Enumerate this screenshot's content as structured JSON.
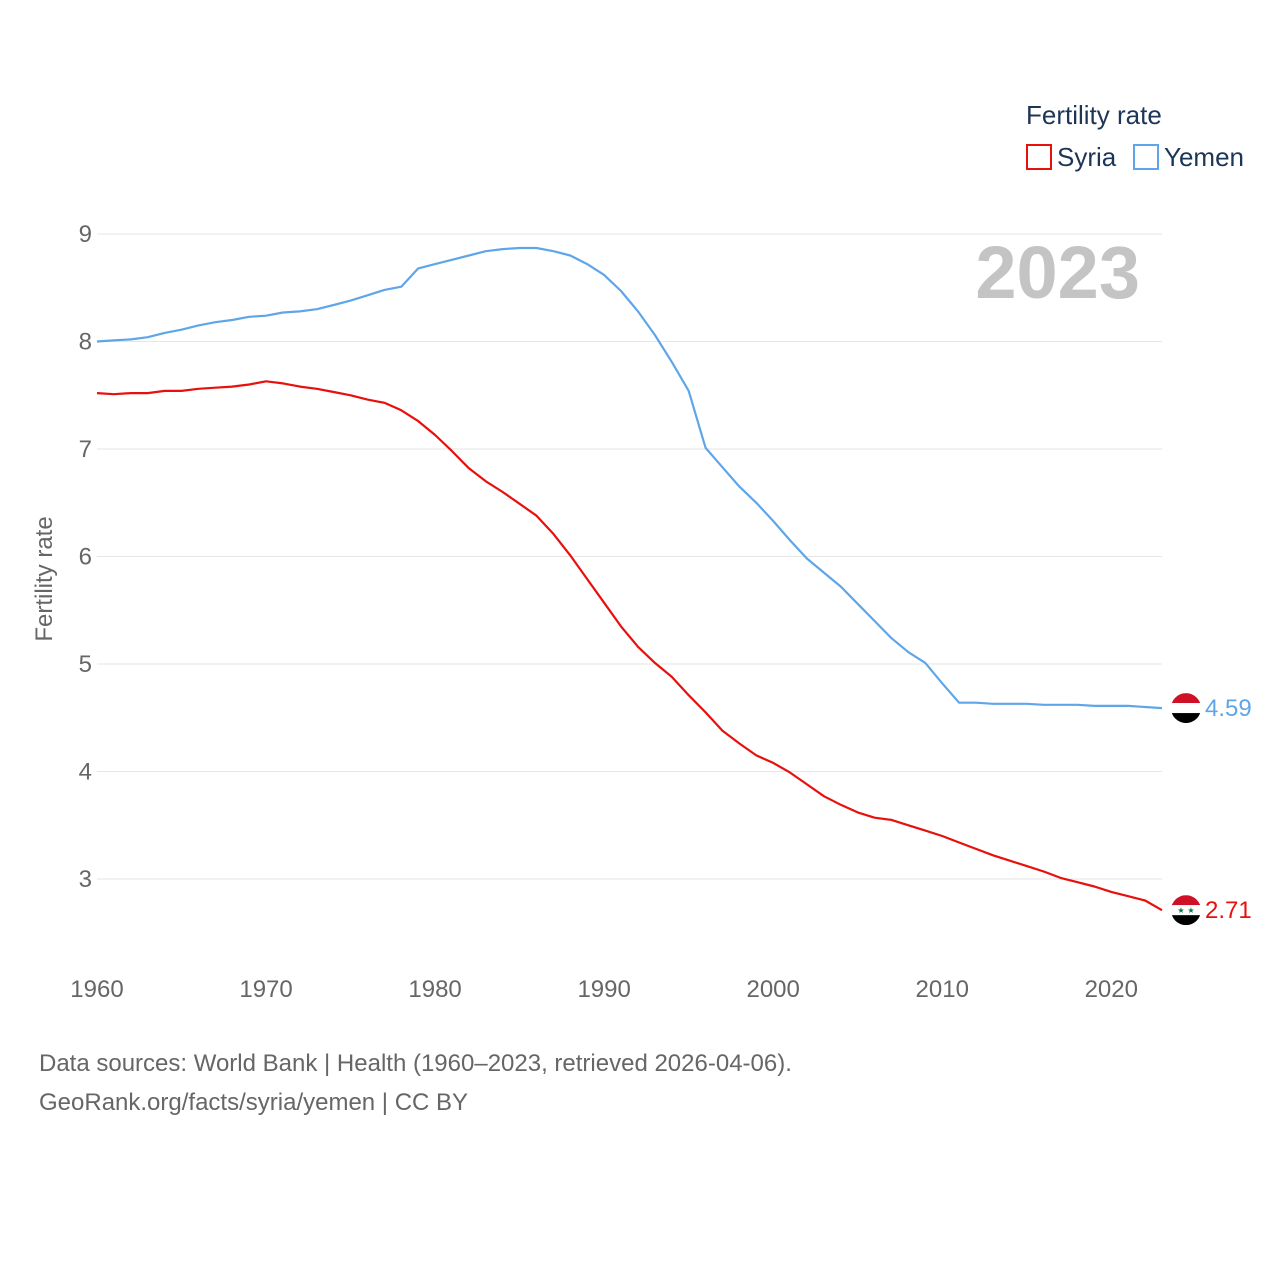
{
  "legend": {
    "title": "Fertility rate",
    "items": [
      {
        "name": "Syria",
        "color": "#e8100c"
      },
      {
        "name": "Yemen",
        "color": "#5fa6e8"
      }
    ]
  },
  "year_label": "2023",
  "y_axis_title": "Fertility rate",
  "sources": {
    "line1": "Data sources: World Bank | Health (1960–2023, retrieved 2026-04-06).",
    "line2": "GeoRank.org/facts/syria/yemen | CC BY"
  },
  "chart_data": {
    "type": "line",
    "title": "Fertility rate",
    "xlabel": "",
    "ylabel": "Fertility rate",
    "xlim": [
      1960,
      2023
    ],
    "ylim": [
      2.4,
      9.3
    ],
    "x_ticks": [
      "1960",
      "1970",
      "1980",
      "1990",
      "2000",
      "2010",
      "2020"
    ],
    "y_ticks": [
      "3",
      "4",
      "5",
      "6",
      "7",
      "8",
      "9"
    ],
    "x": [
      1960,
      1961,
      1962,
      1963,
      1964,
      1965,
      1966,
      1967,
      1968,
      1969,
      1970,
      1971,
      1972,
      1973,
      1974,
      1975,
      1976,
      1977,
      1978,
      1979,
      1980,
      1981,
      1982,
      1983,
      1984,
      1985,
      1986,
      1987,
      1988,
      1989,
      1990,
      1991,
      1992,
      1993,
      1994,
      1995,
      1996,
      1997,
      1998,
      1999,
      2000,
      2001,
      2002,
      2003,
      2004,
      2005,
      2006,
      2007,
      2008,
      2009,
      2010,
      2011,
      2012,
      2013,
      2014,
      2015,
      2016,
      2017,
      2018,
      2019,
      2020,
      2021,
      2022,
      2023
    ],
    "series": [
      {
        "name": "Syria",
        "color": "#e8100c",
        "end_label": "2.71",
        "values": [
          7.52,
          7.51,
          7.52,
          7.52,
          7.54,
          7.54,
          7.56,
          7.57,
          7.58,
          7.6,
          7.63,
          7.61,
          7.58,
          7.56,
          7.53,
          7.5,
          7.46,
          7.43,
          7.36,
          7.26,
          7.13,
          6.98,
          6.82,
          6.7,
          6.6,
          6.49,
          6.38,
          6.21,
          6.01,
          5.79,
          5.57,
          5.35,
          5.16,
          5.01,
          4.88,
          4.71,
          4.55,
          4.38,
          4.26,
          4.15,
          4.08,
          3.99,
          3.88,
          3.77,
          3.69,
          3.62,
          3.57,
          3.55,
          3.5,
          3.45,
          3.4,
          3.34,
          3.28,
          3.22,
          3.17,
          3.12,
          3.07,
          3.01,
          2.97,
          2.93,
          2.88,
          2.84,
          2.8,
          2.71
        ]
      },
      {
        "name": "Yemen",
        "color": "#5fa6e8",
        "end_label": "4.59",
        "values": [
          8.0,
          8.01,
          8.02,
          8.04,
          8.08,
          8.11,
          8.15,
          8.18,
          8.2,
          8.23,
          8.24,
          8.27,
          8.28,
          8.3,
          8.34,
          8.38,
          8.43,
          8.48,
          8.51,
          8.68,
          8.72,
          8.76,
          8.8,
          8.84,
          8.86,
          8.87,
          8.87,
          8.84,
          8.8,
          8.72,
          8.62,
          8.47,
          8.28,
          8.06,
          7.81,
          7.54,
          7.01,
          6.83,
          6.65,
          6.5,
          6.33,
          6.15,
          5.98,
          5.85,
          5.72,
          5.56,
          5.4,
          5.24,
          5.11,
          5.01,
          4.82,
          4.64,
          4.64,
          4.63,
          4.63,
          4.63,
          4.62,
          4.62,
          4.62,
          4.61,
          4.61,
          4.61,
          4.6,
          4.59
        ]
      }
    ]
  }
}
